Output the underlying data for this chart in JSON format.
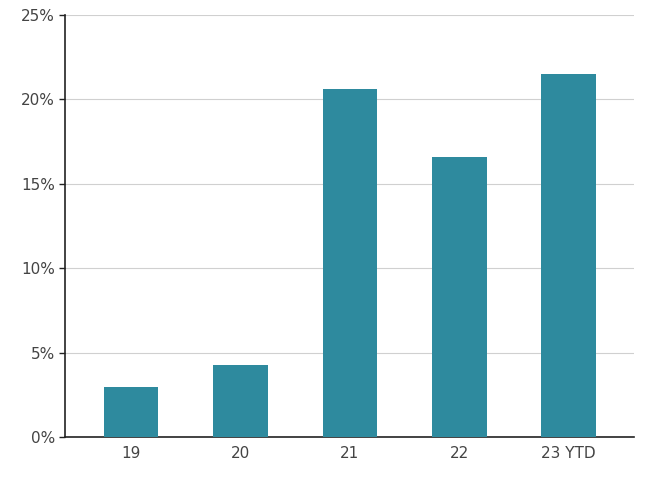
{
  "categories": [
    "19",
    "20",
    "21",
    "22",
    "23 YTD"
  ],
  "values": [
    0.03,
    0.043,
    0.206,
    0.166,
    0.215
  ],
  "bar_color": "#2e8a9e",
  "ylim": [
    0,
    0.25
  ],
  "yticks": [
    0.0,
    0.05,
    0.1,
    0.15,
    0.2,
    0.25
  ],
  "ytick_labels": [
    "0%",
    "5%",
    "10%",
    "15%",
    "20%",
    "25%"
  ],
  "background_color": "#ffffff",
  "grid_color": "#d0d0d0",
  "bar_width": 0.5,
  "spine_color": "#222222",
  "tick_label_color": "#444444",
  "tick_fontsize": 11
}
